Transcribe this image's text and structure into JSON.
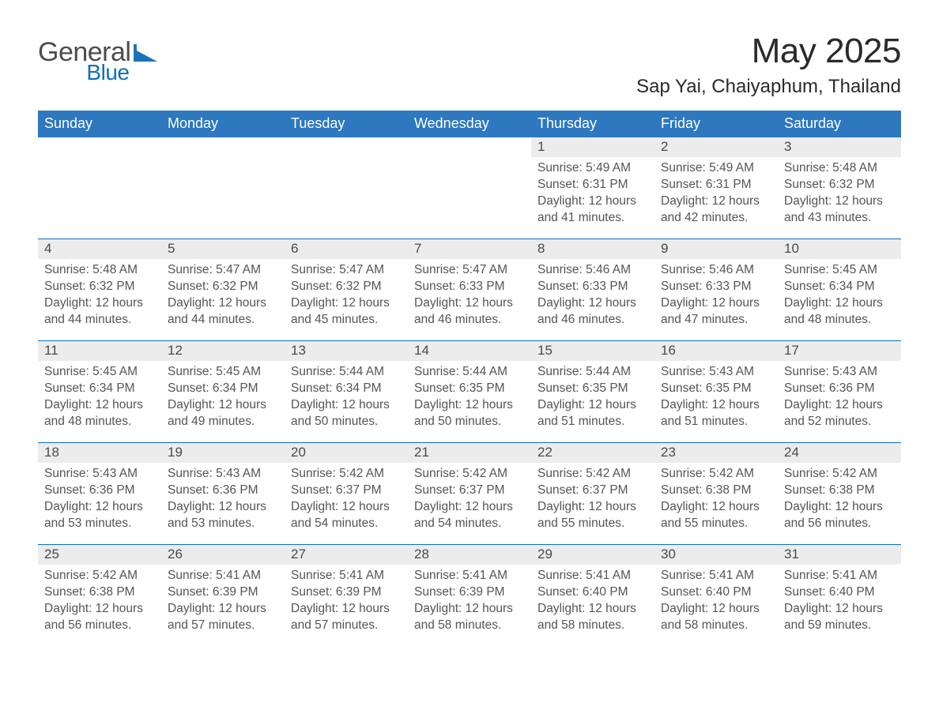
{
  "logo": {
    "word1": "General",
    "word2": "Blue"
  },
  "title": "May 2025",
  "location": "Sap Yai, Chaiyaphum, Thailand",
  "day_headers": [
    "Sunday",
    "Monday",
    "Tuesday",
    "Wednesday",
    "Thursday",
    "Friday",
    "Saturday"
  ],
  "colors": {
    "header_blue": "#2d78bf",
    "accent_blue": "#0d70bd",
    "light_gray": "#ececec",
    "text_dark": "#353535",
    "text_gray": "#555555",
    "logo_gray": "#4c4c4c",
    "background": "#ffffff"
  },
  "typography": {
    "month_title_fontsize": 44,
    "location_fontsize": 24,
    "header_fontsize": 18,
    "daynum_fontsize": 17,
    "body_fontsize": 15.5,
    "font_family": "Helvetica Neue"
  },
  "label_prefixes": {
    "sunrise": "Sunrise: ",
    "sunset": "Sunset: ",
    "daylight": "Daylight: "
  },
  "weeks": [
    [
      null,
      null,
      null,
      null,
      {
        "n": "1",
        "sunrise": "5:49 AM",
        "sunset": "6:31 PM",
        "daylight": "12 hours and 41 minutes."
      },
      {
        "n": "2",
        "sunrise": "5:49 AM",
        "sunset": "6:31 PM",
        "daylight": "12 hours and 42 minutes."
      },
      {
        "n": "3",
        "sunrise": "5:48 AM",
        "sunset": "6:32 PM",
        "daylight": "12 hours and 43 minutes."
      }
    ],
    [
      {
        "n": "4",
        "sunrise": "5:48 AM",
        "sunset": "6:32 PM",
        "daylight": "12 hours and 44 minutes."
      },
      {
        "n": "5",
        "sunrise": "5:47 AM",
        "sunset": "6:32 PM",
        "daylight": "12 hours and 44 minutes."
      },
      {
        "n": "6",
        "sunrise": "5:47 AM",
        "sunset": "6:32 PM",
        "daylight": "12 hours and 45 minutes."
      },
      {
        "n": "7",
        "sunrise": "5:47 AM",
        "sunset": "6:33 PM",
        "daylight": "12 hours and 46 minutes."
      },
      {
        "n": "8",
        "sunrise": "5:46 AM",
        "sunset": "6:33 PM",
        "daylight": "12 hours and 46 minutes."
      },
      {
        "n": "9",
        "sunrise": "5:46 AM",
        "sunset": "6:33 PM",
        "daylight": "12 hours and 47 minutes."
      },
      {
        "n": "10",
        "sunrise": "5:45 AM",
        "sunset": "6:34 PM",
        "daylight": "12 hours and 48 minutes."
      }
    ],
    [
      {
        "n": "11",
        "sunrise": "5:45 AM",
        "sunset": "6:34 PM",
        "daylight": "12 hours and 48 minutes."
      },
      {
        "n": "12",
        "sunrise": "5:45 AM",
        "sunset": "6:34 PM",
        "daylight": "12 hours and 49 minutes."
      },
      {
        "n": "13",
        "sunrise": "5:44 AM",
        "sunset": "6:34 PM",
        "daylight": "12 hours and 50 minutes."
      },
      {
        "n": "14",
        "sunrise": "5:44 AM",
        "sunset": "6:35 PM",
        "daylight": "12 hours and 50 minutes."
      },
      {
        "n": "15",
        "sunrise": "5:44 AM",
        "sunset": "6:35 PM",
        "daylight": "12 hours and 51 minutes."
      },
      {
        "n": "16",
        "sunrise": "5:43 AM",
        "sunset": "6:35 PM",
        "daylight": "12 hours and 51 minutes."
      },
      {
        "n": "17",
        "sunrise": "5:43 AM",
        "sunset": "6:36 PM",
        "daylight": "12 hours and 52 minutes."
      }
    ],
    [
      {
        "n": "18",
        "sunrise": "5:43 AM",
        "sunset": "6:36 PM",
        "daylight": "12 hours and 53 minutes."
      },
      {
        "n": "19",
        "sunrise": "5:43 AM",
        "sunset": "6:36 PM",
        "daylight": "12 hours and 53 minutes."
      },
      {
        "n": "20",
        "sunrise": "5:42 AM",
        "sunset": "6:37 PM",
        "daylight": "12 hours and 54 minutes."
      },
      {
        "n": "21",
        "sunrise": "5:42 AM",
        "sunset": "6:37 PM",
        "daylight": "12 hours and 54 minutes."
      },
      {
        "n": "22",
        "sunrise": "5:42 AM",
        "sunset": "6:37 PM",
        "daylight": "12 hours and 55 minutes."
      },
      {
        "n": "23",
        "sunrise": "5:42 AM",
        "sunset": "6:38 PM",
        "daylight": "12 hours and 55 minutes."
      },
      {
        "n": "24",
        "sunrise": "5:42 AM",
        "sunset": "6:38 PM",
        "daylight": "12 hours and 56 minutes."
      }
    ],
    [
      {
        "n": "25",
        "sunrise": "5:42 AM",
        "sunset": "6:38 PM",
        "daylight": "12 hours and 56 minutes."
      },
      {
        "n": "26",
        "sunrise": "5:41 AM",
        "sunset": "6:39 PM",
        "daylight": "12 hours and 57 minutes."
      },
      {
        "n": "27",
        "sunrise": "5:41 AM",
        "sunset": "6:39 PM",
        "daylight": "12 hours and 57 minutes."
      },
      {
        "n": "28",
        "sunrise": "5:41 AM",
        "sunset": "6:39 PM",
        "daylight": "12 hours and 58 minutes."
      },
      {
        "n": "29",
        "sunrise": "5:41 AM",
        "sunset": "6:40 PM",
        "daylight": "12 hours and 58 minutes."
      },
      {
        "n": "30",
        "sunrise": "5:41 AM",
        "sunset": "6:40 PM",
        "daylight": "12 hours and 58 minutes."
      },
      {
        "n": "31",
        "sunrise": "5:41 AM",
        "sunset": "6:40 PM",
        "daylight": "12 hours and 59 minutes."
      }
    ]
  ]
}
